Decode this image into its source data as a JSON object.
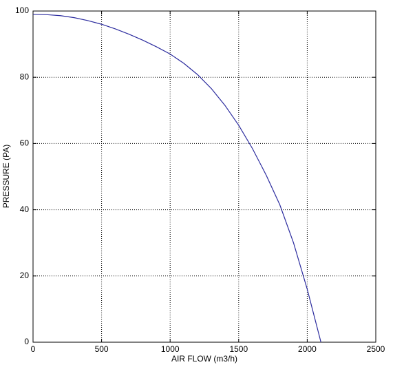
{
  "chart_data": {
    "type": "line",
    "x_label": "AIR FLOW (m3/h)",
    "y_label": "PRESSURE (PA)",
    "x": [
      0,
      100,
      200,
      300,
      400,
      500,
      600,
      700,
      800,
      900,
      1000,
      1100,
      1200,
      1300,
      1400,
      1500,
      1600,
      1700,
      1800,
      1900,
      2000,
      2100
    ],
    "series": [
      {
        "color": "#2b2b9e",
        "values": [
          99,
          98.9,
          98.6,
          98,
          97.1,
          96,
          94.6,
          93,
          91.2,
          89.2,
          87,
          84.2,
          80.8,
          76.6,
          71.5,
          65.5,
          58.5,
          50.5,
          41.5,
          30,
          16,
          0
        ]
      }
    ],
    "xlim": [
      0,
      2500
    ],
    "xticks": [
      0,
      500,
      1000,
      1500,
      2000,
      2500
    ],
    "ylim": [
      0,
      100
    ],
    "yticks": [
      0,
      20,
      40,
      60,
      80,
      100
    ],
    "grid": true
  }
}
